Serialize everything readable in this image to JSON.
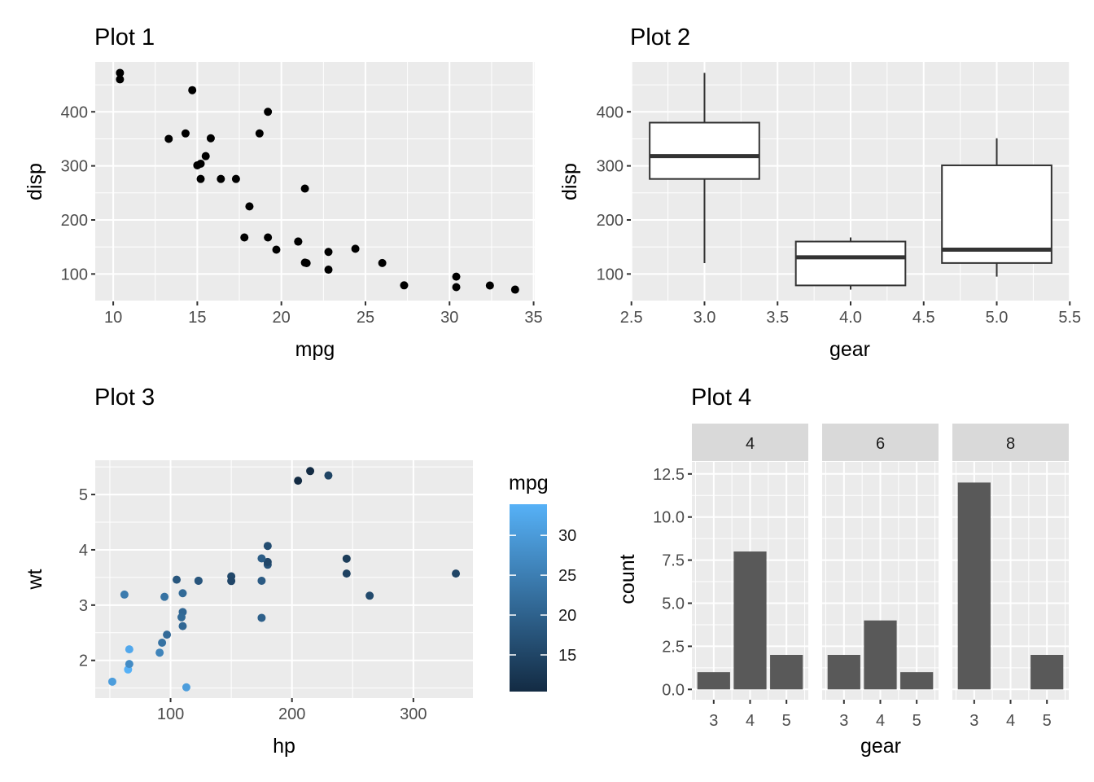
{
  "chart_data": [
    {
      "id": "plot1",
      "type": "scatter",
      "title": "Plot 1",
      "xlabel": "mpg",
      "ylabel": "disp",
      "xlim": [
        8.93,
        35.07
      ],
      "ylim": [
        49.3,
        492.3
      ],
      "xticks": [
        10,
        15,
        20,
        25,
        30,
        35
      ],
      "yticks": [
        100,
        200,
        300,
        400
      ],
      "grid": true,
      "point_color": "#000000",
      "points": [
        {
          "x": 21.0,
          "y": 160
        },
        {
          "x": 21.0,
          "y": 160
        },
        {
          "x": 22.8,
          "y": 108
        },
        {
          "x": 21.4,
          "y": 258
        },
        {
          "x": 18.7,
          "y": 360
        },
        {
          "x": 18.1,
          "y": 225
        },
        {
          "x": 14.3,
          "y": 360
        },
        {
          "x": 24.4,
          "y": 146.7
        },
        {
          "x": 22.8,
          "y": 140.8
        },
        {
          "x": 19.2,
          "y": 167.6
        },
        {
          "x": 17.8,
          "y": 167.6
        },
        {
          "x": 16.4,
          "y": 275.8
        },
        {
          "x": 17.3,
          "y": 275.8
        },
        {
          "x": 15.2,
          "y": 275.8
        },
        {
          "x": 10.4,
          "y": 472
        },
        {
          "x": 10.4,
          "y": 460
        },
        {
          "x": 14.7,
          "y": 440
        },
        {
          "x": 32.4,
          "y": 78.7
        },
        {
          "x": 30.4,
          "y": 75.7
        },
        {
          "x": 33.9,
          "y": 71.1
        },
        {
          "x": 21.5,
          "y": 120.1
        },
        {
          "x": 15.5,
          "y": 318
        },
        {
          "x": 15.2,
          "y": 304
        },
        {
          "x": 13.3,
          "y": 350
        },
        {
          "x": 19.2,
          "y": 400
        },
        {
          "x": 27.3,
          "y": 79
        },
        {
          "x": 26.0,
          "y": 120.3
        },
        {
          "x": 30.4,
          "y": 95.1
        },
        {
          "x": 15.8,
          "y": 351
        },
        {
          "x": 19.7,
          "y": 145
        },
        {
          "x": 15.0,
          "y": 301
        },
        {
          "x": 21.4,
          "y": 121
        }
      ]
    },
    {
      "id": "plot2",
      "type": "box",
      "title": "Plot 2",
      "xlabel": "gear",
      "ylabel": "disp",
      "xlim": [
        2.5,
        5.5
      ],
      "ylim": [
        49.3,
        492.3
      ],
      "xtick_labels": [
        "2.5",
        "3.0",
        "3.5",
        "4.0",
        "4.5",
        "5.0",
        "5.5"
      ],
      "xticks": [
        2.5,
        3.0,
        3.5,
        4.0,
        4.5,
        5.0,
        5.5
      ],
      "yticks": [
        100,
        200,
        300,
        400
      ],
      "grid": true,
      "boxes": [
        {
          "x": 3,
          "min": 120.1,
          "q1": 275.8,
          "median": 318,
          "q3": 380,
          "max": 472
        },
        {
          "x": 4,
          "min": 71.1,
          "q1": 78.85,
          "median": 130.9,
          "q3": 160,
          "max": 167.6
        },
        {
          "x": 5,
          "min": 95.1,
          "q1": 120.3,
          "median": 145,
          "q3": 301,
          "max": 351
        }
      ]
    },
    {
      "id": "plot3",
      "type": "scatter",
      "title": "Plot 3",
      "xlabel": "hp",
      "ylabel": "wt",
      "xlim": [
        37.95,
        349.05
      ],
      "ylim": [
        1.318,
        5.62
      ],
      "xticks": [
        100,
        200,
        300
      ],
      "yticks": [
        2,
        3,
        4,
        5
      ],
      "grid": true,
      "color_by": "mpg",
      "legend": {
        "title": "mpg",
        "placement": "right",
        "type": "colorbar",
        "range": [
          10.4,
          33.9
        ],
        "ticks": [
          15,
          20,
          25,
          30
        ],
        "low_color": "#132B43",
        "high_color": "#56B1F7"
      },
      "points": [
        {
          "x": 110,
          "y": 2.62,
          "c": 21.0
        },
        {
          "x": 110,
          "y": 2.875,
          "c": 21.0
        },
        {
          "x": 93,
          "y": 2.32,
          "c": 22.8
        },
        {
          "x": 110,
          "y": 3.215,
          "c": 21.4
        },
        {
          "x": 175,
          "y": 3.44,
          "c": 18.7
        },
        {
          "x": 105,
          "y": 3.46,
          "c": 18.1
        },
        {
          "x": 245,
          "y": 3.57,
          "c": 14.3
        },
        {
          "x": 62,
          "y": 3.19,
          "c": 24.4
        },
        {
          "x": 95,
          "y": 3.15,
          "c": 22.8
        },
        {
          "x": 123,
          "y": 3.44,
          "c": 19.2
        },
        {
          "x": 123,
          "y": 3.44,
          "c": 17.8
        },
        {
          "x": 180,
          "y": 4.07,
          "c": 16.4
        },
        {
          "x": 180,
          "y": 3.73,
          "c": 17.3
        },
        {
          "x": 180,
          "y": 3.78,
          "c": 15.2
        },
        {
          "x": 205,
          "y": 5.25,
          "c": 10.4
        },
        {
          "x": 215,
          "y": 5.424,
          "c": 10.4
        },
        {
          "x": 230,
          "y": 5.345,
          "c": 14.7
        },
        {
          "x": 66,
          "y": 2.2,
          "c": 32.4
        },
        {
          "x": 52,
          "y": 1.615,
          "c": 30.4
        },
        {
          "x": 65,
          "y": 1.835,
          "c": 33.9
        },
        {
          "x": 97,
          "y": 2.465,
          "c": 21.5
        },
        {
          "x": 150,
          "y": 3.52,
          "c": 15.5
        },
        {
          "x": 150,
          "y": 3.435,
          "c": 15.2
        },
        {
          "x": 245,
          "y": 3.84,
          "c": 13.3
        },
        {
          "x": 175,
          "y": 3.845,
          "c": 19.2
        },
        {
          "x": 66,
          "y": 1.935,
          "c": 27.3
        },
        {
          "x": 91,
          "y": 2.14,
          "c": 26.0
        },
        {
          "x": 113,
          "y": 1.513,
          "c": 30.4
        },
        {
          "x": 264,
          "y": 3.17,
          "c": 15.8
        },
        {
          "x": 175,
          "y": 2.77,
          "c": 19.7
        },
        {
          "x": 335,
          "y": 3.57,
          "c": 15.0
        },
        {
          "x": 109,
          "y": 2.78,
          "c": 21.4
        }
      ]
    },
    {
      "id": "plot4",
      "type": "bar",
      "title": "Plot 4",
      "xlabel": "gear",
      "ylabel": "count",
      "facet_by": "cyl",
      "ylim": [
        -0.6,
        13.2
      ],
      "yticks": [
        0.0,
        2.5,
        5.0,
        7.5,
        10.0,
        12.5
      ],
      "ytick_labels": [
        "0.0",
        "2.5",
        "5.0",
        "7.5",
        "10.0",
        "12.5"
      ],
      "categories": [
        "3",
        "4",
        "5"
      ],
      "bar_color": "#595959",
      "grid": true,
      "facets": [
        {
          "label": "4",
          "values": [
            1,
            8,
            2
          ]
        },
        {
          "label": "6",
          "values": [
            2,
            4,
            1
          ]
        },
        {
          "label": "8",
          "values": [
            12,
            0,
            2
          ]
        }
      ]
    }
  ]
}
